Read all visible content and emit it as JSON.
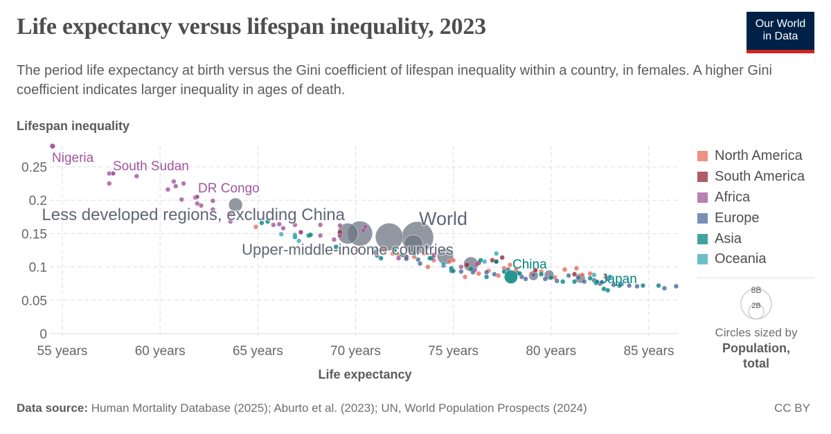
{
  "header": {
    "title": "Life expectancy versus lifespan inequality, 2023",
    "subtitle": "The period life expectancy at birth versus the Gini coefficient of lifespan inequality within a country, in females. A higher Gini coefficient indicates larger inequality in ages of death.",
    "logo_line1": "Our World",
    "logo_line2": "in Data"
  },
  "footer": {
    "source_label": "Data source:",
    "source_text": "Human Mortality Database (2025); Aburto et al. (2023); UN, World Population Prospects (2024)",
    "license": "CC BY"
  },
  "chart_data": {
    "type": "scatter",
    "ylabel": "Lifespan inequality",
    "xlabel": "Life expectancy",
    "xlim": [
      54.3,
      86.5
    ],
    "ylim": [
      0,
      0.29
    ],
    "x_ticks": [
      {
        "v": 55,
        "label": "55 years"
      },
      {
        "v": 60,
        "label": "60 years"
      },
      {
        "v": 65,
        "label": "65 years"
      },
      {
        "v": 70,
        "label": "70 years"
      },
      {
        "v": 75,
        "label": "75 years"
      },
      {
        "v": 80,
        "label": "80 years"
      },
      {
        "v": 85,
        "label": "85 years"
      }
    ],
    "y_ticks": [
      {
        "v": 0,
        "label": "0"
      },
      {
        "v": 0.05,
        "label": "0.05"
      },
      {
        "v": 0.1,
        "label": "0.1"
      },
      {
        "v": 0.15,
        "label": "0.15"
      },
      {
        "v": 0.2,
        "label": "0.2"
      },
      {
        "v": 0.25,
        "label": "0.25"
      }
    ],
    "grid": true,
    "legend_placement": "right",
    "series": [
      {
        "name": "North America",
        "color": "#e56e5a",
        "points": [
          [
            64.9,
            0.16
          ],
          [
            71.5,
            0.124
          ],
          [
            71.9,
            0.12
          ],
          [
            72.2,
            0.118
          ],
          [
            73.0,
            0.115
          ],
          [
            73.5,
            0.12
          ],
          [
            73.7,
            0.1
          ],
          [
            74.0,
            0.11
          ],
          [
            74.8,
            0.108
          ],
          [
            75.0,
            0.11
          ],
          [
            75.6,
            0.085
          ],
          [
            76.3,
            0.09
          ],
          [
            76.8,
            0.094
          ],
          [
            77.3,
            0.087
          ],
          [
            77.6,
            0.098
          ],
          [
            77.9,
            0.103
          ],
          [
            78.2,
            0.095
          ],
          [
            79.0,
            0.089
          ],
          [
            79.5,
            0.093
          ],
          [
            80.2,
            0.084
          ],
          [
            80.7,
            0.096
          ],
          [
            81.3,
            0.098
          ],
          [
            81.6,
            0.088
          ],
          [
            82.0,
            0.09
          ],
          [
            82.8,
            0.085
          ]
        ]
      },
      {
        "name": "South America",
        "color": "#932834",
        "points": [
          [
            67.2,
            0.152
          ],
          [
            69.2,
            0.152
          ],
          [
            70.1,
            0.125
          ],
          [
            71.0,
            0.122
          ],
          [
            71.4,
            0.127
          ],
          [
            72.6,
            0.115
          ],
          [
            74.0,
            0.118
          ],
          [
            75.7,
            0.103
          ],
          [
            76.3,
            0.106
          ],
          [
            77.0,
            0.11
          ],
          [
            77.2,
            0.108
          ],
          [
            77.5,
            0.114
          ],
          [
            79.2,
            0.095
          ],
          [
            81.2,
            0.089
          ]
        ]
      },
      {
        "name": "Africa",
        "color": "#a2559c",
        "points": [
          [
            54.5,
            0.281
          ],
          [
            57.4,
            0.24
          ],
          [
            57.6,
            0.24
          ],
          [
            57.4,
            0.225
          ],
          [
            58.8,
            0.236
          ],
          [
            60.4,
            0.216
          ],
          [
            60.7,
            0.228
          ],
          [
            60.8,
            0.221
          ],
          [
            61.2,
            0.225
          ],
          [
            61.1,
            0.201
          ],
          [
            61.8,
            0.204
          ],
          [
            61.9,
            0.205
          ],
          [
            61.9,
            0.195
          ],
          [
            62.1,
            0.192
          ],
          [
            62.7,
            0.199
          ],
          [
            62.7,
            0.186
          ],
          [
            63.6,
            0.18
          ],
          [
            63.6,
            0.168
          ],
          [
            65.8,
            0.163
          ],
          [
            66.1,
            0.164
          ],
          [
            66.3,
            0.158
          ],
          [
            66.9,
            0.163
          ],
          [
            67.2,
            0.152
          ],
          [
            68.2,
            0.163
          ],
          [
            68.2,
            0.147
          ],
          [
            68.9,
            0.141
          ],
          [
            69.2,
            0.162
          ],
          [
            69.2,
            0.147
          ],
          [
            70.4,
            0.155
          ],
          [
            70.5,
            0.16
          ],
          [
            72.2,
            0.113
          ],
          [
            74.0,
            0.117
          ],
          [
            75.4,
            0.1
          ],
          [
            76.1,
            0.095
          ],
          [
            76.2,
            0.104
          ]
        ]
      },
      {
        "name": "Europe",
        "color": "#4c6a9c",
        "points": [
          [
            71.1,
            0.117
          ],
          [
            72.6,
            0.112
          ],
          [
            73.2,
            0.111
          ],
          [
            73.3,
            0.105
          ],
          [
            73.9,
            0.113
          ],
          [
            74.5,
            0.102
          ],
          [
            74.9,
            0.094
          ],
          [
            75.4,
            0.093
          ],
          [
            76.0,
            0.092
          ],
          [
            76.7,
            0.092
          ],
          [
            77.1,
            0.089
          ],
          [
            77.8,
            0.096
          ],
          [
            78.3,
            0.091
          ],
          [
            78.5,
            0.085
          ],
          [
            78.7,
            0.082
          ],
          [
            79.1,
            0.088
          ],
          [
            79.7,
            0.082
          ],
          [
            80.3,
            0.079
          ],
          [
            80.9,
            0.087
          ],
          [
            81.4,
            0.084
          ],
          [
            81.7,
            0.078
          ],
          [
            82.2,
            0.08
          ],
          [
            82.5,
            0.075
          ],
          [
            82.6,
            0.077
          ],
          [
            82.9,
            0.082
          ],
          [
            83.2,
            0.073
          ],
          [
            83.6,
            0.074
          ],
          [
            84.0,
            0.072
          ],
          [
            84.4,
            0.071
          ],
          [
            85.8,
            0.068
          ],
          [
            86.4,
            0.071
          ]
        ]
      },
      {
        "name": "Asia",
        "color": "#00847e",
        "points": [
          [
            65.2,
            0.166
          ],
          [
            65.5,
            0.168
          ],
          [
            66.9,
            0.145
          ],
          [
            67.6,
            0.147
          ],
          [
            67.7,
            0.148
          ],
          [
            69.0,
            0.13
          ],
          [
            71.3,
            0.113
          ],
          [
            72.0,
            0.125
          ],
          [
            72.4,
            0.118
          ],
          [
            73.0,
            0.12
          ],
          [
            73.8,
            0.113
          ],
          [
            74.9,
            0.098
          ],
          [
            75.0,
            0.094
          ],
          [
            75.9,
            0.097
          ],
          [
            76.4,
            0.11
          ],
          [
            76.7,
            0.085
          ],
          [
            77.2,
            0.108
          ],
          [
            77.6,
            0.093
          ],
          [
            78.4,
            0.09
          ],
          [
            79.5,
            0.089
          ],
          [
            80.0,
            0.084
          ],
          [
            80.6,
            0.078
          ],
          [
            81.2,
            0.078
          ],
          [
            82.0,
            0.083
          ],
          [
            82.3,
            0.076
          ],
          [
            82.7,
            0.067
          ],
          [
            82.9,
            0.065
          ],
          [
            83.5,
            0.072
          ],
          [
            84.7,
            0.072
          ],
          [
            85.5,
            0.072
          ]
        ]
      },
      {
        "name": "Oceania",
        "color": "#38aaba",
        "points": [
          [
            66.2,
            0.149
          ],
          [
            66.9,
            0.148
          ],
          [
            67.1,
            0.139
          ],
          [
            71.1,
            0.125
          ],
          [
            74.5,
            0.105
          ],
          [
            76.6,
            0.108
          ],
          [
            77.2,
            0.12
          ],
          [
            82.2,
            0.088
          ],
          [
            83.0,
            0.085
          ]
        ]
      }
    ],
    "aggregates": [
      {
        "x": 63.86,
        "y": 0.193,
        "population_billion": 1.5
      },
      {
        "x": 69.6,
        "y": 0.15,
        "population_billion": 3.4
      },
      {
        "x": 70.23,
        "y": 0.15,
        "population_billion": 4.9,
        "label": "Less developed regions, excluding China"
      },
      {
        "x": 71.72,
        "y": 0.145,
        "population_billion": 6.0
      },
      {
        "x": 73.17,
        "y": 0.144,
        "population_billion": 8.1,
        "label": "World"
      },
      {
        "x": 72.96,
        "y": 0.134,
        "population_billion": 2.8,
        "label": "Upper-middle-income countries"
      },
      {
        "x": 74.59,
        "y": 0.116,
        "population_billion": 2.1
      },
      {
        "x": 75.9,
        "y": 0.104,
        "population_billion": 1.7
      },
      {
        "x": 79.1,
        "y": 0.087,
        "population_billion": 0.75
      },
      {
        "x": 79.9,
        "y": 0.088,
        "population_billion": 0.75
      },
      {
        "x": 81.5,
        "y": 0.083,
        "population_billion": 0.75
      }
    ],
    "aggregate_color": "#6d7583",
    "labeled_countries": [
      {
        "label": "Nigeria",
        "region": "Africa",
        "x": 54.5,
        "y": 0.281,
        "population_billion": 0.23
      },
      {
        "label": "South Sudan",
        "region": "Africa",
        "x": 57.6,
        "y": 0.24,
        "population_billion": 0.011
      },
      {
        "label": "DR Congo",
        "region": "Africa",
        "x": 61.9,
        "y": 0.205,
        "population_billion": 0.105
      },
      {
        "label": "China",
        "region": "Asia",
        "x": 77.95,
        "y": 0.085,
        "population_billion": 1.41
      },
      {
        "label": "Japan",
        "region": "Asia",
        "x": 82.35,
        "y": 0.078,
        "population_billion": 0.124
      }
    ],
    "size_legend": {
      "title": "Circles sized by",
      "variable": "Population,",
      "variable2": "total",
      "large": "8B",
      "small": "2B"
    }
  }
}
